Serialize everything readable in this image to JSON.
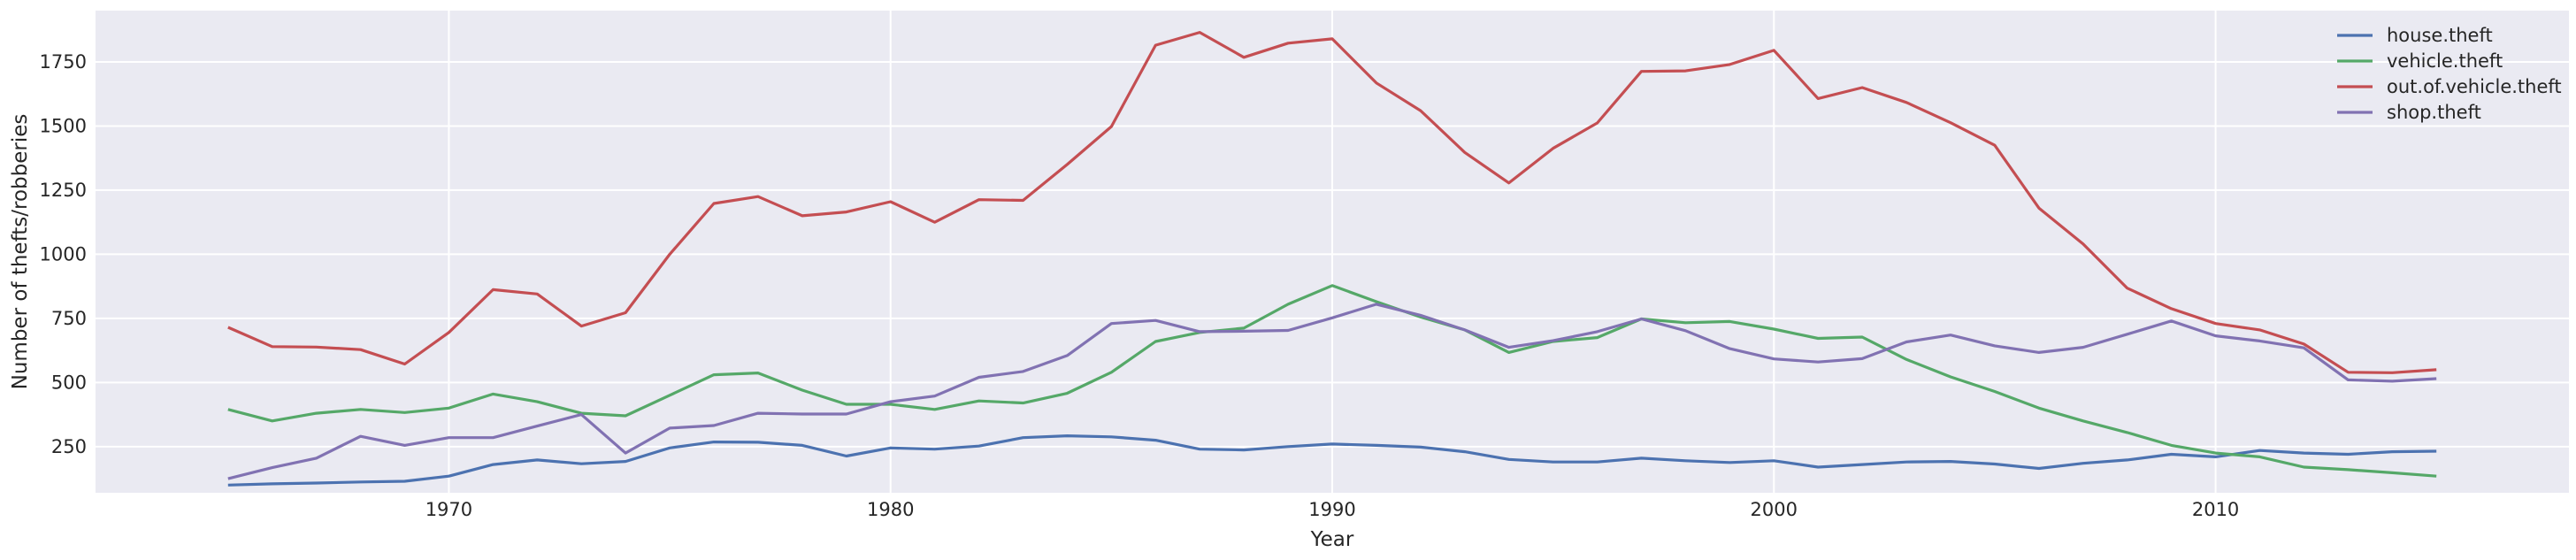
{
  "chart_data": {
    "type": "line",
    "xlabel": "Year",
    "ylabel": "Number of thefts/robberies",
    "xlim": [
      1962,
      2018
    ],
    "ylim": [
      70,
      1950
    ],
    "x_ticks": [
      1970,
      1980,
      1990,
      2000,
      2010
    ],
    "y_ticks": [
      250,
      500,
      750,
      1000,
      1250,
      1500,
      1750
    ],
    "grid": true,
    "legend_position": "top-right",
    "x": [
      1965,
      1966,
      1967,
      1968,
      1969,
      1970,
      1971,
      1972,
      1973,
      1974,
      1975,
      1976,
      1977,
      1978,
      1979,
      1980,
      1981,
      1982,
      1983,
      1984,
      1985,
      1986,
      1987,
      1988,
      1989,
      1990,
      1991,
      1992,
      1993,
      1994,
      1995,
      1996,
      1997,
      1998,
      1999,
      2000,
      2001,
      2002,
      2003,
      2004,
      2005,
      2006,
      2007,
      2008,
      2009,
      2010,
      2011,
      2012,
      2013,
      2014,
      2015
    ],
    "series": [
      {
        "name": "house.theft",
        "color": "#4c72b0",
        "values": [
          100,
          105,
          108,
          112,
          115,
          135,
          180,
          198,
          183,
          192,
          245,
          268,
          267,
          255,
          213,
          245,
          240,
          252,
          285,
          292,
          288,
          275,
          240,
          237,
          250,
          260,
          255,
          248,
          230,
          200,
          190,
          190,
          205,
          195,
          188,
          195,
          170,
          180,
          190,
          192,
          182,
          165,
          185,
          198,
          220,
          210,
          235,
          225,
          220,
          230,
          232
        ]
      },
      {
        "name": "vehicle.theft",
        "color": "#55a868",
        "values": [
          395,
          350,
          380,
          395,
          383,
          400,
          455,
          425,
          380,
          370,
          450,
          530,
          537,
          470,
          415,
          415,
          395,
          428,
          420,
          458,
          540,
          660,
          695,
          712,
          805,
          878,
          815,
          755,
          705,
          617,
          660,
          675,
          748,
          733,
          738,
          708,
          672,
          677,
          590,
          522,
          465,
          400,
          350,
          305,
          255,
          225,
          210,
          170,
          160,
          148,
          135
        ]
      },
      {
        "name": "out.of.vehicle.theft",
        "color": "#c44e52",
        "values": [
          715,
          640,
          638,
          628,
          572,
          695,
          862,
          845,
          720,
          772,
          1000,
          1198,
          1225,
          1150,
          1165,
          1205,
          1125,
          1213,
          1210,
          1350,
          1498,
          1815,
          1865,
          1768,
          1823,
          1840,
          1668,
          1560,
          1397,
          1278,
          1413,
          1512,
          1713,
          1715,
          1740,
          1795,
          1607,
          1650,
          1592,
          1513,
          1425,
          1180,
          1040,
          868,
          788,
          730,
          705,
          650,
          540,
          538,
          550
        ]
      },
      {
        "name": "shop.theft",
        "color": "#8172b2",
        "values": [
          125,
          168,
          205,
          290,
          255,
          285,
          285,
          330,
          375,
          225,
          322,
          332,
          380,
          377,
          377,
          425,
          447,
          520,
          543,
          605,
          730,
          742,
          698,
          700,
          703,
          752,
          805,
          762,
          705,
          637,
          663,
          698,
          748,
          702,
          632,
          592,
          580,
          593,
          658,
          685,
          643,
          617,
          637,
          688,
          740,
          682,
          662,
          635,
          510,
          505,
          515
        ]
      }
    ]
  }
}
